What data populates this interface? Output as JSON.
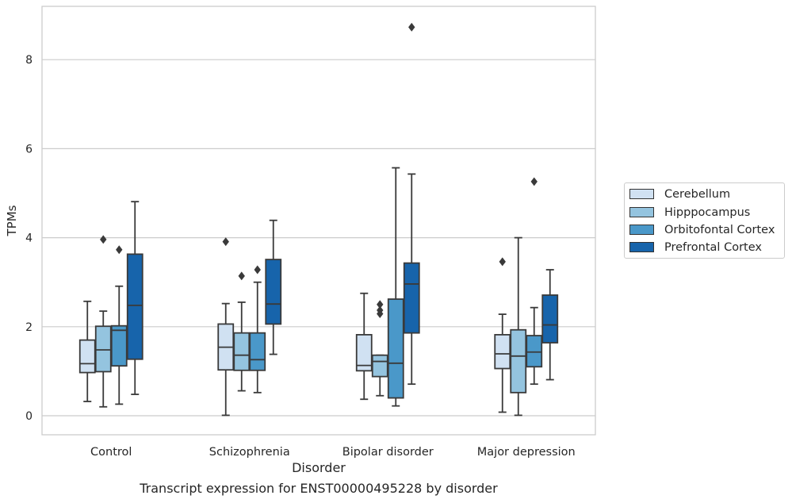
{
  "caption": "Transcript expression for ENST00000495228 by disorder",
  "chart_data": {
    "type": "box",
    "xlabel": "Disorder",
    "ylabel": "TPMs",
    "ylim": [
      -0.4,
      9.2
    ],
    "yticks": [
      0,
      2,
      4,
      6,
      8
    ],
    "grid": "horizontal",
    "legend_placement": "right",
    "categories": [
      "Control",
      "Schizophrenia",
      "Bipolar disorder",
      "Major depression"
    ],
    "series": [
      {
        "name": "Cerebellum",
        "color": "#d0e1f2",
        "boxes": [
          {
            "whislo": 0.32,
            "q1": 0.97,
            "med": 1.17,
            "q3": 1.7,
            "whishi": 2.57,
            "fliers": []
          },
          {
            "whislo": 0.01,
            "q1": 1.03,
            "med": 1.54,
            "q3": 2.06,
            "whishi": 2.52,
            "fliers": [
              3.91
            ]
          },
          {
            "whislo": 0.37,
            "q1": 1.01,
            "med": 1.13,
            "q3": 1.82,
            "whishi": 2.75,
            "fliers": []
          },
          {
            "whislo": 0.08,
            "q1": 1.06,
            "med": 1.39,
            "q3": 1.82,
            "whishi": 2.28,
            "fliers": [
              3.46
            ]
          }
        ]
      },
      {
        "name": "Hipppocampus",
        "color": "#94c4df",
        "boxes": [
          {
            "whislo": 0.2,
            "q1": 0.99,
            "med": 1.48,
            "q3": 2.01,
            "whishi": 2.35,
            "fliers": [
              3.96
            ]
          },
          {
            "whislo": 0.56,
            "q1": 1.02,
            "med": 1.36,
            "q3": 1.86,
            "whishi": 2.55,
            "fliers": [
              3.14
            ]
          },
          {
            "whislo": 0.45,
            "q1": 0.88,
            "med": 1.22,
            "q3": 1.36,
            "whishi": 1.36,
            "fliers": [
              2.29,
              2.37,
              2.5
            ]
          },
          {
            "whislo": 0.01,
            "q1": 0.52,
            "med": 1.34,
            "q3": 1.93,
            "whishi": 4.0,
            "fliers": []
          }
        ]
      },
      {
        "name": "Orbitofontal Cortex",
        "color": "#4a98c9",
        "boxes": [
          {
            "whislo": 0.26,
            "q1": 1.12,
            "med": 1.92,
            "q3": 2.02,
            "whishi": 2.91,
            "fliers": [
              3.73
            ]
          },
          {
            "whislo": 0.52,
            "q1": 1.02,
            "med": 1.26,
            "q3": 1.86,
            "whishi": 3.0,
            "fliers": [
              3.28
            ]
          },
          {
            "whislo": 0.22,
            "q1": 0.4,
            "med": 1.18,
            "q3": 2.62,
            "whishi": 5.57,
            "fliers": []
          },
          {
            "whislo": 0.71,
            "q1": 1.1,
            "med": 1.43,
            "q3": 1.8,
            "whishi": 2.43,
            "fliers": [
              5.26
            ]
          }
        ]
      },
      {
        "name": "Prefrontal Cortex",
        "color": "#1764ab",
        "boxes": [
          {
            "whislo": 0.48,
            "q1": 1.27,
            "med": 2.48,
            "q3": 3.63,
            "whishi": 4.81,
            "fliers": []
          },
          {
            "whislo": 1.38,
            "q1": 2.06,
            "med": 2.51,
            "q3": 3.51,
            "whishi": 4.39,
            "fliers": []
          },
          {
            "whislo": 0.71,
            "q1": 1.86,
            "med": 2.96,
            "q3": 3.43,
            "whishi": 5.43,
            "fliers": [
              8.73
            ]
          },
          {
            "whislo": 0.81,
            "q1": 1.64,
            "med": 2.04,
            "q3": 2.71,
            "whishi": 3.28,
            "fliers": []
          }
        ]
      }
    ]
  }
}
